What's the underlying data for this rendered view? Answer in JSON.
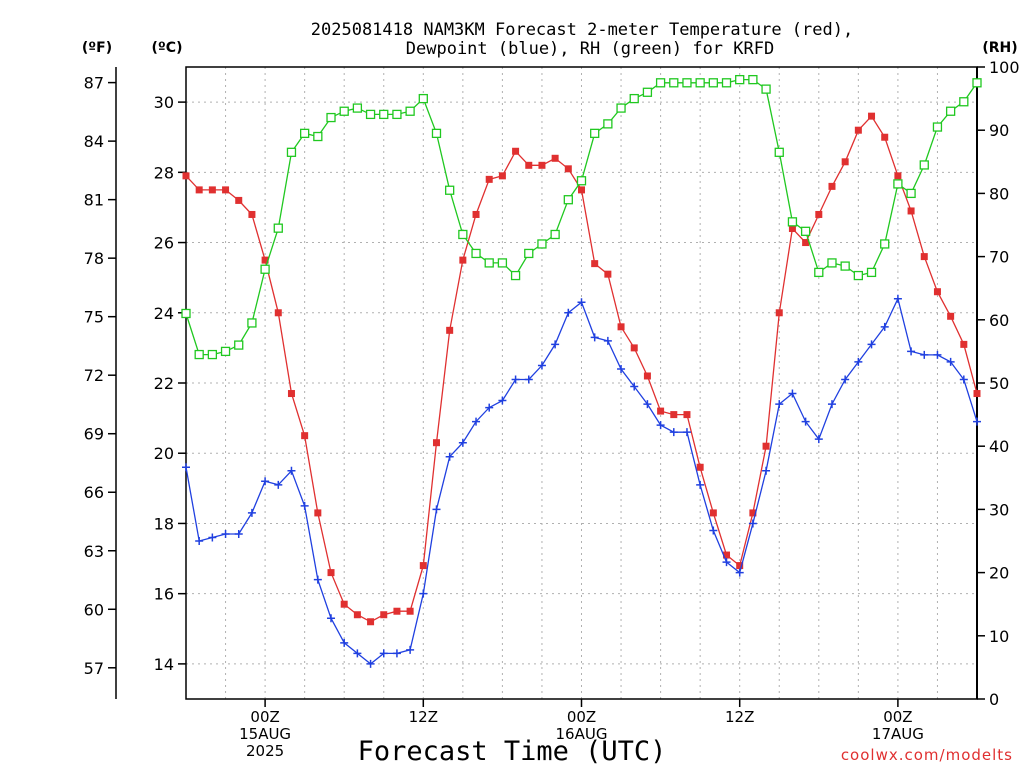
{
  "chart_data": {
    "type": "line",
    "title_lines": [
      "2025081418 NAM3KM Forecast 2-meter Temperature (red),",
      "Dewpoint (blue), RH (green) for KRFD"
    ],
    "xlabel": "Forecast Time (UTC)",
    "credit": "coolwx.com/modelts",
    "unit_labels": {
      "fahrenheit": "(ºF)",
      "celsius": "(ºC)",
      "rh": "(RH)"
    },
    "x_unit": "forecast hour from 2025-08-14 18Z",
    "xlim": [
      0,
      60
    ],
    "ylim_celsius": [
      13,
      31
    ],
    "ylim_rh": [
      0,
      100
    ],
    "x_ticks": [
      {
        "x": 6,
        "lines": [
          "00Z",
          "15AUG",
          "2025"
        ]
      },
      {
        "x": 18,
        "lines": [
          "12Z"
        ]
      },
      {
        "x": 30,
        "lines": [
          "00Z",
          "16AUG"
        ]
      },
      {
        "x": 42,
        "lines": [
          "12Z"
        ]
      },
      {
        "x": 54,
        "lines": [
          "00Z",
          "17AUG"
        ]
      }
    ],
    "y_ticks_celsius": [
      "14",
      "16",
      "18",
      "20",
      "22",
      "24",
      "26",
      "28",
      "30"
    ],
    "y_ticks_fahrenheit": [
      "57",
      "60",
      "63",
      "66",
      "69",
      "72",
      "75",
      "78",
      "81",
      "84",
      "87"
    ],
    "y_ticks_rh": [
      "0",
      "10",
      "20",
      "30",
      "40",
      "50",
      "60",
      "70",
      "80",
      "90",
      "100"
    ],
    "grid": true,
    "colors": {
      "temperature": "#e03030",
      "dewpoint": "#2040e0",
      "rh": "#20c820",
      "grid": "#b0b0b0"
    },
    "x": [
      0,
      1,
      2,
      3,
      4,
      5,
      6,
      7,
      8,
      9,
      10,
      11,
      12,
      13,
      14,
      15,
      16,
      17,
      18,
      19,
      20,
      21,
      22,
      23,
      24,
      25,
      26,
      27,
      28,
      29,
      30,
      31,
      32,
      33,
      34,
      35,
      36,
      37,
      38,
      39,
      40,
      41,
      42,
      43,
      44,
      45,
      46,
      47,
      48,
      49,
      50,
      51,
      52,
      53,
      54,
      55,
      56,
      57,
      58,
      59,
      60
    ],
    "series": [
      {
        "id": "temperature",
        "marker": "filled-square",
        "axis": "celsius",
        "values": [
          27.9,
          27.5,
          27.5,
          27.5,
          27.2,
          26.8,
          25.5,
          24.0,
          21.7,
          20.5,
          18.3,
          16.6,
          15.7,
          15.4,
          15.2,
          15.4,
          15.5,
          15.5,
          16.8,
          20.3,
          23.5,
          25.5,
          26.8,
          27.8,
          27.9,
          28.6,
          28.2,
          28.2,
          28.4,
          28.1,
          27.5,
          25.4,
          25.1,
          23.6,
          23.0,
          22.2,
          21.2,
          21.1,
          21.1,
          19.6,
          18.3,
          17.1,
          16.8,
          18.3,
          20.2,
          24.0,
          26.4,
          26.0,
          26.8,
          27.6,
          28.3,
          29.2,
          29.6,
          29.0,
          27.9,
          26.9,
          25.6,
          24.6,
          23.9,
          23.1,
          21.7
        ]
      },
      {
        "id": "dewpoint",
        "marker": "plus",
        "axis": "celsius",
        "values": [
          19.6,
          17.5,
          17.6,
          17.7,
          17.7,
          18.3,
          19.2,
          19.1,
          19.5,
          18.5,
          16.4,
          15.3,
          14.6,
          14.3,
          14.0,
          14.3,
          14.3,
          14.4,
          16.0,
          18.4,
          19.9,
          20.3,
          20.9,
          21.3,
          21.5,
          22.1,
          22.1,
          22.5,
          23.1,
          24.0,
          24.3,
          23.3,
          23.2,
          22.4,
          21.9,
          21.4,
          20.8,
          20.6,
          20.6,
          19.1,
          17.8,
          16.9,
          16.6,
          18.0,
          19.5,
          21.4,
          21.7,
          20.9,
          20.4,
          21.4,
          22.1,
          22.6,
          23.1,
          23.6,
          24.4,
          22.9,
          22.8,
          22.8,
          22.6,
          22.1,
          20.9
        ]
      },
      {
        "id": "rh",
        "marker": "open-square",
        "axis": "rh",
        "values": [
          61,
          54.5,
          54.5,
          55,
          56,
          59.5,
          68,
          74.5,
          86.5,
          89.5,
          89,
          92,
          93,
          93.5,
          92.5,
          92.5,
          92.5,
          93,
          95,
          89.5,
          80.5,
          73.5,
          70.5,
          69,
          69,
          67,
          70.5,
          72,
          73.5,
          79,
          82,
          89.5,
          91,
          93.5,
          95,
          96,
          97.5,
          97.5,
          97.5,
          97.5,
          97.5,
          97.5,
          98,
          98,
          96.5,
          86.5,
          75.5,
          74,
          67.5,
          69,
          68.5,
          67,
          67.5,
          72,
          81.5,
          80,
          84.5,
          90.5,
          93,
          94.5,
          97.5
        ]
      }
    ]
  }
}
